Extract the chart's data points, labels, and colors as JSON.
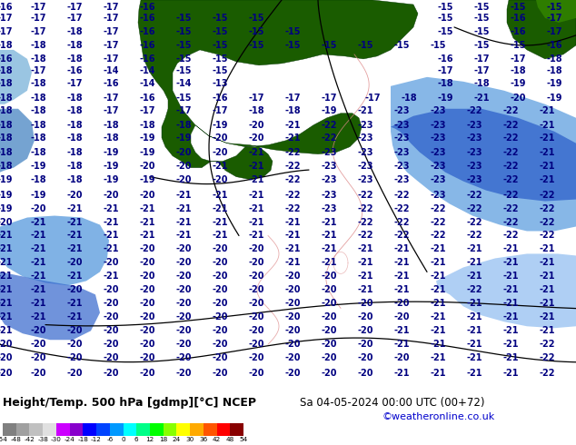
{
  "title_left": "Height/Temp. 500 hPa [gdmp][°C] NCEP",
  "title_right": "Sa 04-05-2024 00:00 UTC (00+72)",
  "credit": "©weatheronline.co.uk",
  "colorbar_levels": [
    "-54",
    "-48",
    "-42",
    "-38",
    "-30",
    "-24",
    "-18",
    "-12",
    "-6",
    "0",
    "6",
    "12",
    "18",
    "24",
    "30",
    "36",
    "42",
    "48",
    "54"
  ],
  "colorbar_colors": [
    "#808080",
    "#a0a0a0",
    "#c0c0c0",
    "#e0e0e0",
    "#cc00ff",
    "#8800cc",
    "#0000ff",
    "#0044ff",
    "#0099ff",
    "#00ffff",
    "#00ff88",
    "#00ff00",
    "#88ff00",
    "#ffff00",
    "#ffaa00",
    "#ff5500",
    "#ff0000",
    "#880000"
  ],
  "bg_cyan": "#00d4f0",
  "dark_green": "#1a5c00",
  "medium_green": "#2e7d00",
  "light_green_stripe": "#00cc00",
  "blue_medium": "#5599dd",
  "blue_dark": "#3366cc",
  "blue_mid": "#4488ee",
  "text_color": "#000080",
  "contour_color": "#000000",
  "label_fontsize": 7.0,
  "title_fontsize": 9,
  "credit_color": "#0000cc"
}
